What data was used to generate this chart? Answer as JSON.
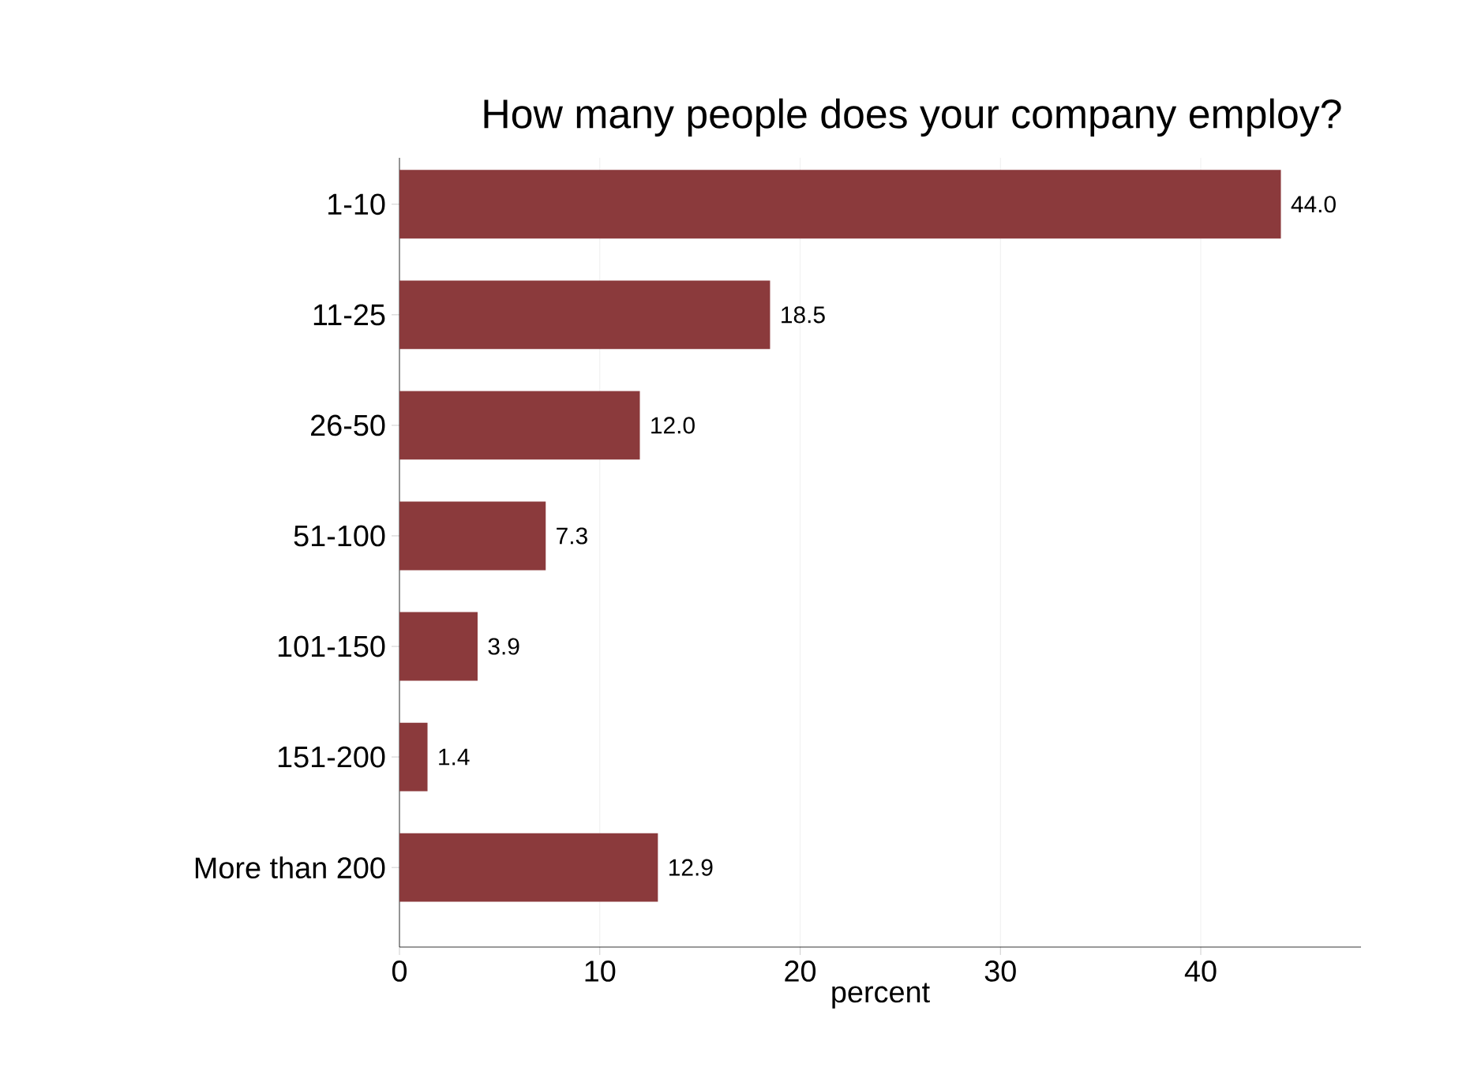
{
  "chart_data": {
    "type": "bar",
    "orientation": "horizontal",
    "title": "How many people does your company employ?",
    "xlabel": "percent",
    "categories": [
      "1-10",
      "11-25",
      "26-50",
      "51-100",
      "101-150",
      "151-200",
      "More than 200"
    ],
    "values": [
      44.0,
      18.5,
      12.0,
      7.3,
      3.9,
      1.4,
      12.9
    ],
    "value_labels": [
      "44.0",
      "18.5",
      "12.0",
      "7.3",
      "3.9",
      "1.4",
      "12.9"
    ],
    "color": "#8b3a3c",
    "xlim": [
      0,
      48
    ],
    "xticks": [
      0,
      10,
      20,
      30,
      40
    ],
    "grid": "x"
  }
}
